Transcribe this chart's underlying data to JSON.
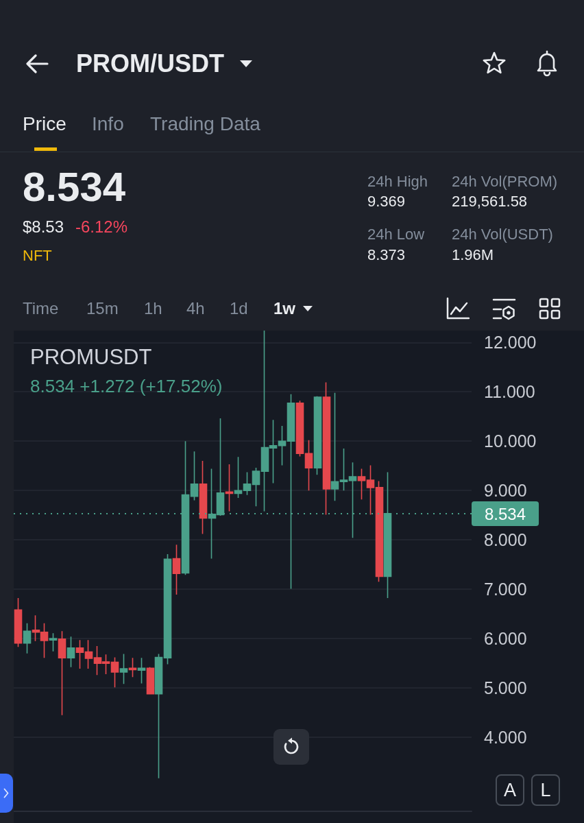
{
  "chart_data": {
    "type": "candlestick",
    "title": "PROMUSDT",
    "subtitle": "8.534 +1.272 (+17.52%)",
    "categories": [
      null,
      null,
      null,
      null,
      null,
      null,
      null,
      null,
      null,
      null,
      null,
      null,
      null,
      null,
      null,
      null,
      null,
      null,
      null,
      null,
      null,
      null,
      null,
      null,
      null,
      null,
      null,
      null,
      null,
      null,
      null,
      null,
      null,
      null,
      null,
      null,
      null,
      null,
      null,
      null,
      null,
      null,
      null,
      null,
      null,
      null,
      null,
      null,
      null,
      null,
      null,
      null
    ],
    "ohlc": [
      [
        6.58,
        6.82,
        5.83,
        5.91
      ],
      [
        5.91,
        6.31,
        5.7,
        6.15
      ],
      [
        6.17,
        6.47,
        5.95,
        6.13
      ],
      [
        6.13,
        6.31,
        5.61,
        5.96
      ],
      [
        5.97,
        6.11,
        5.74,
        6.0
      ],
      [
        5.99,
        6.15,
        4.45,
        5.61
      ],
      [
        5.61,
        6.04,
        5.42,
        5.81
      ],
      [
        5.81,
        5.97,
        5.39,
        5.72
      ],
      [
        5.73,
        5.97,
        5.39,
        5.6
      ],
      [
        5.61,
        5.85,
        5.26,
        5.5
      ],
      [
        5.53,
        5.68,
        5.28,
        5.5
      ],
      [
        5.52,
        5.62,
        5.01,
        5.32
      ],
      [
        5.32,
        5.69,
        5.08,
        5.39
      ],
      [
        5.4,
        5.61,
        5.22,
        5.37
      ],
      [
        5.36,
        5.61,
        5.09,
        5.4
      ],
      [
        5.4,
        5.42,
        4.88,
        4.88
      ],
      [
        4.88,
        5.69,
        3.17,
        5.62
      ],
      [
        5.61,
        7.71,
        5.48,
        7.61
      ],
      [
        7.62,
        7.9,
        6.89,
        7.32
      ],
      [
        7.33,
        10.0,
        7.29,
        8.91
      ],
      [
        8.88,
        9.79,
        8.8,
        9.13
      ],
      [
        9.13,
        9.6,
        8.12,
        8.44
      ],
      [
        8.44,
        9.44,
        7.62,
        8.52
      ],
      [
        8.51,
        10.46,
        8.49,
        8.95
      ],
      [
        8.97,
        9.53,
        8.58,
        8.94
      ],
      [
        8.94,
        9.68,
        8.85,
        9.0
      ],
      [
        9.0,
        9.37,
        8.91,
        9.13
      ],
      [
        9.12,
        9.46,
        8.68,
        9.39
      ],
      [
        9.39,
        12.24,
        8.58,
        9.87
      ],
      [
        9.86,
        10.43,
        9.15,
        9.91
      ],
      [
        9.91,
        10.31,
        9.51,
        10.0
      ],
      [
        10.0,
        10.95,
        7.01,
        10.77
      ],
      [
        10.77,
        10.82,
        9.69,
        9.75
      ],
      [
        9.75,
        10.02,
        9.0,
        9.46
      ],
      [
        9.46,
        10.91,
        9.32,
        10.89
      ],
      [
        10.89,
        11.19,
        8.51,
        9.03
      ],
      [
        9.03,
        10.98,
        8.79,
        9.18
      ],
      [
        9.18,
        9.85,
        9.0,
        9.21
      ],
      [
        9.2,
        9.57,
        8.04,
        9.28
      ],
      [
        9.28,
        9.44,
        8.82,
        9.2
      ],
      [
        9.21,
        9.51,
        8.51,
        9.06
      ],
      [
        9.06,
        9.19,
        7.15,
        7.26
      ],
      [
        7.26,
        9.37,
        6.82,
        8.534
      ],
      null,
      null,
      null,
      null,
      null,
      null,
      null,
      null,
      null
    ],
    "colors": [
      "#e5484d",
      "#4aa08a",
      "#e5484d",
      "#e5484d",
      "#4aa08a",
      "#e5484d",
      "#4aa08a",
      "#e5484d",
      "#e5484d",
      "#e5484d",
      "#e5484d",
      "#e5484d",
      "#4aa08a",
      "#e5484d",
      "#4aa08a",
      "#e5484d",
      "#4aa08a",
      "#4aa08a",
      "#e5484d",
      "#4aa08a",
      "#4aa08a",
      "#e5484d",
      "#4aa08a",
      "#4aa08a",
      "#e5484d",
      "#4aa08a",
      "#4aa08a",
      "#4aa08a",
      "#4aa08a",
      "#4aa08a",
      "#4aa08a",
      "#4aa08a",
      "#e5484d",
      "#e5484d",
      "#4aa08a",
      "#e5484d",
      "#4aa08a",
      "#4aa08a",
      "#4aa08a",
      "#e5484d",
      "#e5484d",
      "#e5484d",
      "#4aa08a",
      null,
      null,
      null,
      null,
      null,
      null,
      null,
      null,
      null
    ],
    "ylim": [
      2.5,
      12.24
    ],
    "yticks": [
      {
        "value": 4,
        "label": "4.000"
      },
      {
        "value": 5,
        "label": "5.000"
      },
      {
        "value": 6,
        "label": "6.000"
      },
      {
        "value": 7,
        "label": "7.000"
      },
      {
        "value": 8,
        "label": "8.000"
      },
      {
        "value": 9,
        "label": "9.000"
      },
      {
        "value": 10,
        "label": "10.000"
      },
      {
        "value": 11,
        "label": "11.000"
      },
      {
        "value": 12,
        "label": "12.000"
      }
    ],
    "grid": "y",
    "tick_labels": "y",
    "ref_lines": [
      {
        "axis": "y",
        "value": 8.534,
        "label": "8.534",
        "color": "#4aa08a",
        "line_style": "dotted"
      }
    ],
    "annotations": [
      "PROM/USDT",
      "Price",
      "Info",
      "Trading Data",
      "8.534",
      "$8.53",
      "-6.12%",
      "NFT",
      "24h High",
      "9.369",
      "24h Vol(PROM)",
      "219,561.58",
      "24h Low",
      "8.373",
      "24h Vol(USDT)",
      "1.96M",
      "Time",
      "15m",
      "1h",
      "4h",
      "1d",
      "1w",
      "A",
      "L"
    ]
  }
}
